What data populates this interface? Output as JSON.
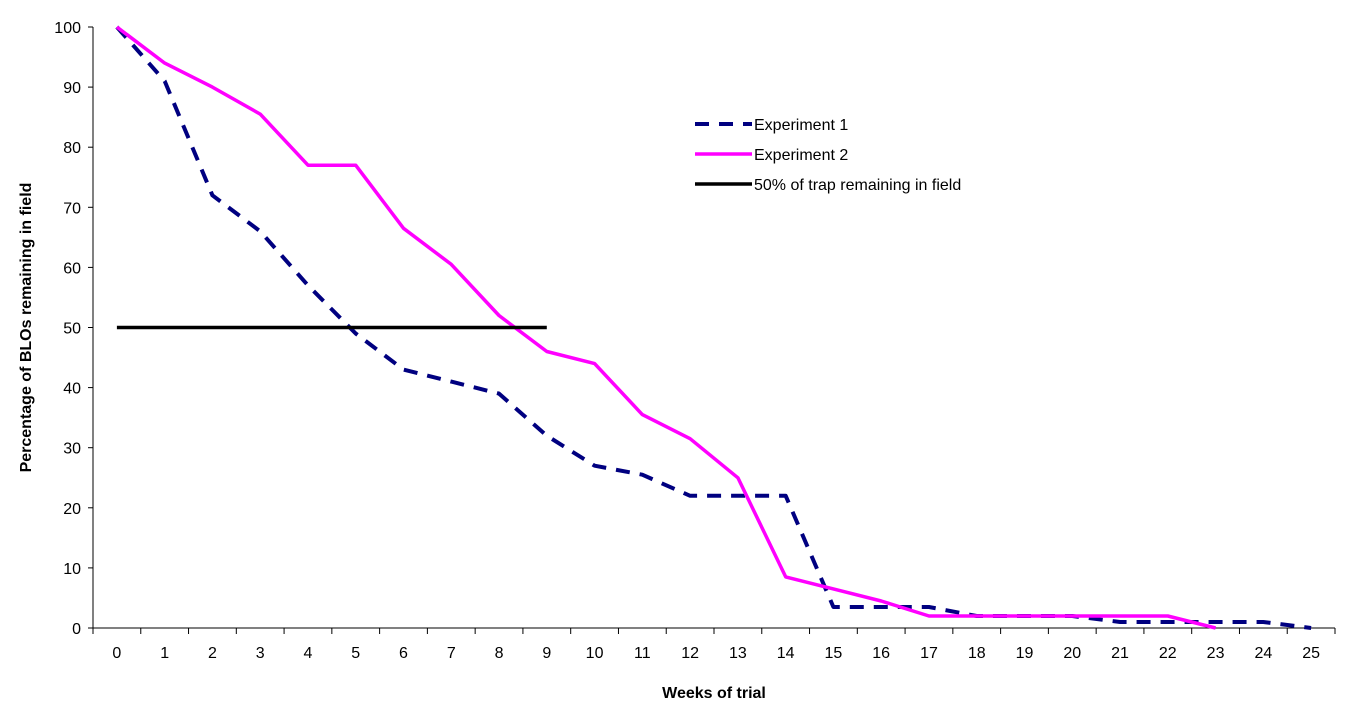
{
  "chart_data": {
    "type": "line",
    "xlabel": "Weeks of trial",
    "ylabel": "Percentage of BLOs remaining in field",
    "x": [
      0,
      1,
      2,
      3,
      4,
      5,
      6,
      7,
      8,
      9,
      10,
      11,
      12,
      13,
      14,
      15,
      16,
      17,
      18,
      19,
      20,
      21,
      22,
      23,
      24,
      25
    ],
    "xlim": [
      0,
      25
    ],
    "ylim": [
      0,
      100
    ],
    "yticks": [
      0,
      10,
      20,
      30,
      40,
      50,
      60,
      70,
      80,
      90,
      100
    ],
    "grid": false,
    "legend_position": "top-right",
    "series": [
      {
        "name": "Experiment 1",
        "color": "#000080",
        "style": "dashed",
        "x": [
          0,
          1,
          2,
          3,
          4,
          5,
          6,
          7,
          8,
          9,
          10,
          11,
          12,
          13,
          14,
          15,
          16,
          17,
          18,
          19,
          20,
          21,
          22,
          23,
          24,
          25
        ],
        "values": [
          100,
          91,
          72,
          66,
          57,
          49,
          43,
          41,
          39,
          32,
          27,
          25.5,
          22,
          22,
          22,
          3.5,
          3.5,
          3.5,
          2,
          2,
          2,
          1,
          1,
          1,
          1,
          0
        ]
      },
      {
        "name": "Experiment 2",
        "color": "#ff00ff",
        "style": "solid",
        "x": [
          0,
          1,
          2,
          3,
          4,
          5,
          6,
          7,
          8,
          9,
          10,
          11,
          12,
          13,
          14,
          15,
          16,
          17,
          18,
          19,
          20,
          21,
          22,
          23
        ],
        "values": [
          100,
          94,
          90,
          85.5,
          77,
          77,
          66.5,
          60.5,
          52,
          46,
          44,
          35.5,
          31.5,
          25,
          8.5,
          6.5,
          4.5,
          2,
          2,
          2,
          2,
          2,
          2,
          0
        ]
      },
      {
        "name": "50% of trap remaining in field",
        "color": "#000000",
        "style": "solid",
        "x": [
          0,
          9
        ],
        "values": [
          50,
          50
        ]
      }
    ]
  }
}
